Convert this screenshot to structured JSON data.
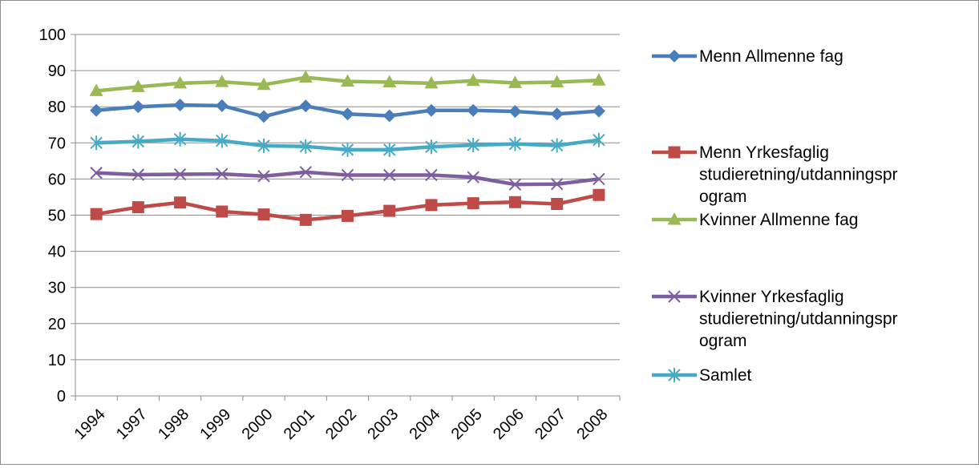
{
  "chart_data": {
    "type": "line",
    "title": "",
    "xlabel": "",
    "ylabel": "",
    "ylim": [
      0,
      100
    ],
    "yticks": [
      0,
      10,
      20,
      30,
      40,
      50,
      60,
      70,
      80,
      90,
      100
    ],
    "grid": "horizontal",
    "legend_position": "right",
    "categories": [
      "1994",
      "1997",
      "1998",
      "1999",
      "2000",
      "2001",
      "2002",
      "2003",
      "2004",
      "2005",
      "2006",
      "2007",
      "2008"
    ],
    "series": [
      {
        "name": "Menn Allmenne fag",
        "legend_lines": [
          "Menn Allmenne fag"
        ],
        "color": "#4a7ebb",
        "marker": "diamond",
        "values": [
          79,
          80,
          80.5,
          80.3,
          77.3,
          80.2,
          78,
          77.5,
          79,
          79,
          78.7,
          78,
          78.8
        ]
      },
      {
        "name": "Menn Yrkesfaglig studieretning/utdanningsprogram",
        "legend_lines": [
          "Menn Yrkesfaglig",
          "studieretning/utdanningspr",
          "ogram"
        ],
        "color": "#be4b48",
        "marker": "square",
        "values": [
          50.3,
          52.2,
          53.5,
          51,
          50.2,
          48.7,
          49.8,
          51.2,
          52.8,
          53.3,
          53.6,
          53.1,
          55.6
        ]
      },
      {
        "name": "Kvinner Allmenne fag",
        "legend_lines": [
          "Kvinner Allmenne fag"
        ],
        "color": "#98b954",
        "marker": "triangle",
        "values": [
          84.4,
          85.5,
          86.5,
          86.9,
          86.1,
          88.1,
          87,
          86.8,
          86.5,
          87.2,
          86.6,
          86.8,
          87.3
        ]
      },
      {
        "name": "Kvinner Yrkesfaglig studieretning/utdanningsprogram",
        "legend_lines": [
          "Kvinner Yrkesfaglig",
          "studieretning/utdanningspr",
          "ogram"
        ],
        "color": "#7d5fa0",
        "marker": "x",
        "values": [
          61.7,
          61.2,
          61.3,
          61.4,
          60.8,
          61.9,
          61.1,
          61.1,
          61.1,
          60.5,
          58.5,
          58.6,
          60
        ]
      },
      {
        "name": "Samlet",
        "legend_lines": [
          "Samlet"
        ],
        "color": "#46aac5",
        "marker": "star",
        "values": [
          70,
          70.4,
          71,
          70.6,
          69.2,
          69,
          68.1,
          68.1,
          68.9,
          69.4,
          69.7,
          69.3,
          70.8
        ]
      }
    ]
  }
}
